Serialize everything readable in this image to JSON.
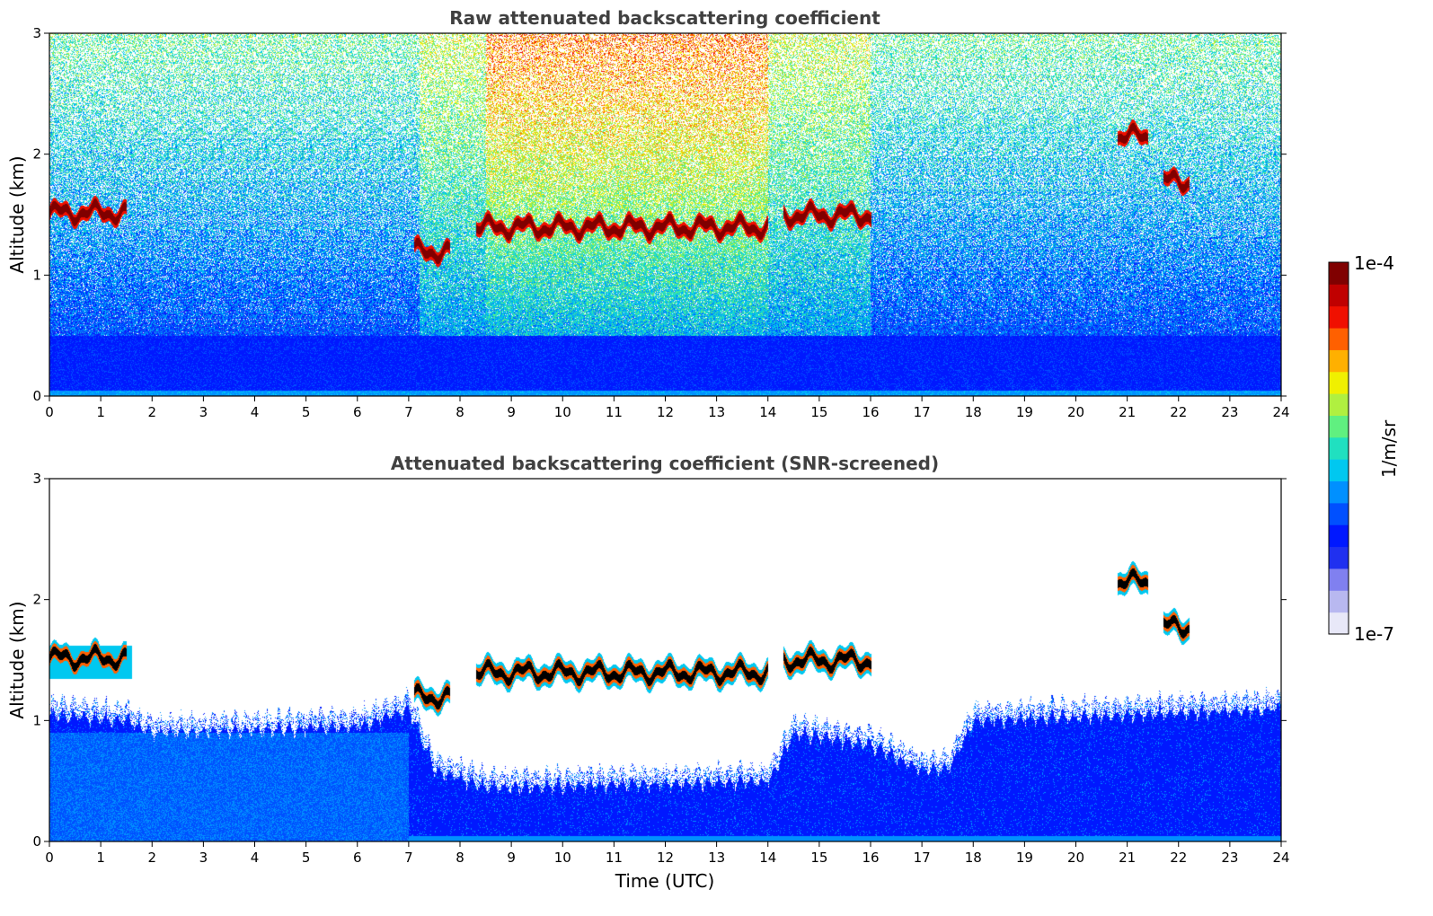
{
  "colormap": [
    "#e8e8f8",
    "#b8b8f0",
    "#8080f0",
    "#2030f0",
    "#0018ff",
    "#0050ff",
    "#0090ff",
    "#00c8f0",
    "#20e0c0",
    "#60f080",
    "#b0f040",
    "#f0f000",
    "#ffb000",
    "#ff6000",
    "#f01000",
    "#c00000",
    "#800000"
  ],
  "chart_data": [
    {
      "type": "heatmap",
      "title": "Raw attenuated backscattering coefficient",
      "xlabel": "",
      "ylabel": "Altitude (km)",
      "xlim": [
        0,
        24
      ],
      "ylim": [
        0,
        3
      ],
      "xticks": [
        "0",
        "1",
        "2",
        "3",
        "4",
        "5",
        "6",
        "7",
        "8",
        "9",
        "10",
        "11",
        "12",
        "13",
        "14",
        "15",
        "16",
        "17",
        "18",
        "19",
        "20",
        "21",
        "22",
        "23",
        "24"
      ],
      "yticks": [
        "0",
        "1",
        "2",
        "3"
      ],
      "cloud_layers": [
        {
          "t_start": 0.0,
          "t_end": 1.5,
          "alt_km": 1.52
        },
        {
          "t_start": 7.1,
          "t_end": 7.8,
          "alt_km": 1.2
        },
        {
          "t_start": 8.3,
          "t_end": 14.0,
          "alt_km": 1.4
        },
        {
          "t_start": 14.3,
          "t_end": 16.0,
          "alt_km": 1.5
        },
        {
          "t_start": 20.8,
          "t_end": 21.4,
          "alt_km": 2.15
        },
        {
          "t_start": 21.7,
          "t_end": 22.2,
          "alt_km": 1.78
        }
      ]
    },
    {
      "type": "heatmap",
      "title": "Attenuated backscattering coefficient (SNR-screened)",
      "xlabel": "Time (UTC)",
      "ylabel": "Altitude (km)",
      "xlim": [
        0,
        24
      ],
      "ylim": [
        0,
        3
      ],
      "xticks": [
        "0",
        "1",
        "2",
        "3",
        "4",
        "5",
        "6",
        "7",
        "8",
        "9",
        "10",
        "11",
        "12",
        "13",
        "14",
        "15",
        "16",
        "17",
        "18",
        "19",
        "20",
        "21",
        "22",
        "23",
        "24"
      ],
      "yticks": [
        "0",
        "1",
        "2",
        "3"
      ],
      "boundary_layer_top_km": [
        [
          0,
          1.05
        ],
        [
          1.5,
          1.0
        ],
        [
          2,
          0.9
        ],
        [
          6,
          0.95
        ],
        [
          7,
          1.1
        ],
        [
          7.5,
          0.6
        ],
        [
          8.5,
          0.45
        ],
        [
          14,
          0.5
        ],
        [
          14.5,
          0.9
        ],
        [
          16,
          0.8
        ],
        [
          17,
          0.6
        ],
        [
          17.5,
          0.6
        ],
        [
          18,
          1.0
        ],
        [
          24,
          1.1
        ]
      ]
    }
  ],
  "colorbar": {
    "label": "1/m/sr",
    "max_label": "1e-4",
    "min_label": "1e-7"
  }
}
